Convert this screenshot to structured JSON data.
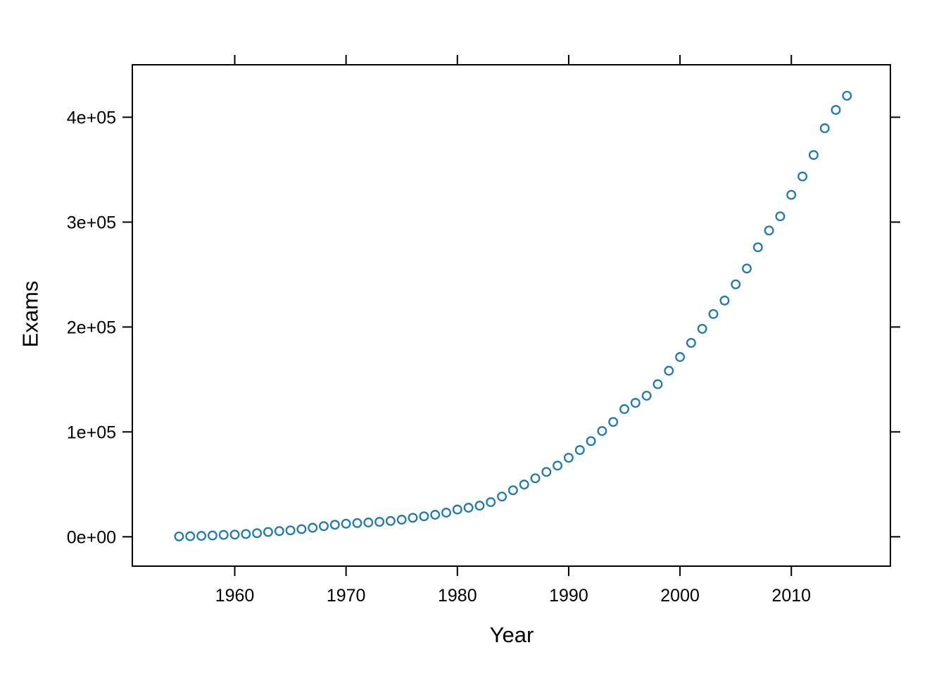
{
  "chart_data": {
    "type": "scatter",
    "title": "",
    "xlabel": "Year",
    "ylabel": "Exams",
    "x": [
      1955,
      1956,
      1957,
      1958,
      1959,
      1960,
      1961,
      1962,
      1963,
      1964,
      1965,
      1966,
      1967,
      1968,
      1969,
      1970,
      1971,
      1972,
      1973,
      1974,
      1975,
      1976,
      1977,
      1978,
      1979,
      1980,
      1981,
      1982,
      1983,
      1984,
      1985,
      1986,
      1987,
      1988,
      1989,
      1990,
      1991,
      1992,
      1993,
      1994,
      1995,
      1996,
      1997,
      1998,
      1999,
      2000,
      2001,
      2002,
      2003,
      2004,
      2005,
      2006,
      2007,
      2008,
      2009,
      2010,
      2011,
      2012,
      2013,
      2014,
      2015
    ],
    "y": [
      300,
      550,
      900,
      1300,
      1800,
      2100,
      2700,
      3400,
      4600,
      5400,
      6100,
      7300,
      8600,
      10100,
      11500,
      12500,
      13100,
      13600,
      14200,
      15100,
      16300,
      18100,
      19500,
      21000,
      23000,
      26000,
      27700,
      29700,
      33000,
      38300,
      44400,
      49800,
      55800,
      61800,
      67900,
      75300,
      82700,
      91200,
      100800,
      109500,
      121700,
      127700,
      134500,
      145500,
      158300,
      171400,
      184900,
      198300,
      212400,
      225200,
      240700,
      255800,
      276000,
      292000,
      305500,
      326000,
      343500,
      364000,
      389500,
      407000,
      420500
    ],
    "xlim": [
      1950.8,
      2018.9
    ],
    "ylim": [
      -28000,
      450000
    ],
    "xticks": [
      1960,
      1970,
      1980,
      1990,
      2000,
      2010
    ],
    "xtick_labels": [
      "1960",
      "1970",
      "1980",
      "1990",
      "2000",
      "2010"
    ],
    "yticks": [
      0,
      100000,
      200000,
      300000,
      400000
    ],
    "ytick_labels": [
      "0e+00",
      "1e+05",
      "2e+05",
      "3e+05",
      "4e+05"
    ],
    "grid": "off",
    "legend": "none",
    "marker": "open-circle",
    "point_color": "#1F78B4",
    "axis_color": "#000000",
    "background_color": "#ffffff"
  }
}
